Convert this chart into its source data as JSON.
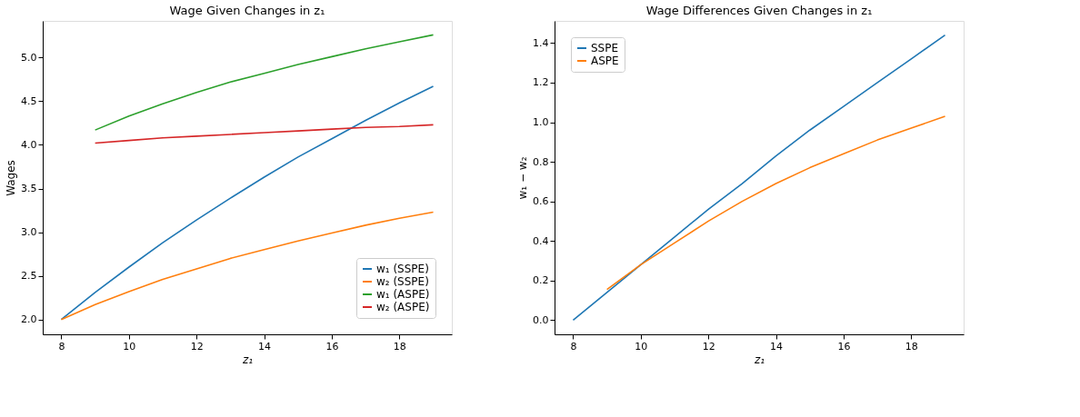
{
  "chart_data": [
    {
      "type": "line",
      "title": "Wage Given Changes in z₁",
      "xlabel": "z₁",
      "ylabel": "Wages",
      "xlim": [
        7.45,
        19.55
      ],
      "xticks": [
        8,
        10,
        12,
        14,
        16,
        18
      ],
      "ylim": [
        1.83,
        5.42
      ],
      "yticks": [
        {
          "value": 2,
          "label": "2.0"
        },
        2.5,
        {
          "value": 3,
          "label": "3.0"
        },
        3.5,
        {
          "value": 4,
          "label": "4.0"
        },
        4.5,
        {
          "value": 5,
          "label": "5.0"
        }
      ],
      "grid": false,
      "legend": "bottom right",
      "marker": "none",
      "line_style": "solid",
      "series": [
        {
          "name": "w₁ (SSPE)",
          "color": "#1f77b4",
          "x": [
            8,
            9,
            10,
            11,
            12,
            13,
            14,
            15,
            16,
            17,
            18,
            19
          ],
          "values": [
            2.0,
            2.31,
            2.6,
            2.88,
            3.14,
            3.39,
            3.63,
            3.86,
            4.07,
            4.28,
            4.48,
            4.67
          ]
        },
        {
          "name": "w₂ (SSPE)",
          "color": "#ff7f0e",
          "x": [
            8,
            9,
            10,
            11,
            12,
            13,
            14,
            15,
            16,
            17,
            18,
            19
          ],
          "values": [
            2.0,
            2.17,
            2.32,
            2.46,
            2.58,
            2.7,
            2.8,
            2.9,
            2.99,
            3.08,
            3.16,
            3.23
          ]
        },
        {
          "name": "w₁ (ASPE)",
          "color": "#2ca02c",
          "x": [
            9,
            10,
            11,
            12,
            13,
            14,
            15,
            16,
            17,
            18,
            19
          ],
          "values": [
            4.17,
            4.33,
            4.47,
            4.6,
            4.72,
            4.82,
            4.92,
            5.01,
            5.1,
            5.18,
            5.26
          ]
        },
        {
          "name": "w₂ (ASPE)",
          "color": "#d62728",
          "x": [
            9,
            10,
            11,
            12,
            13,
            14,
            15,
            16,
            17,
            18,
            19
          ],
          "values": [
            4.02,
            4.05,
            4.08,
            4.1,
            4.12,
            4.14,
            4.16,
            4.18,
            4.2,
            4.21,
            4.23
          ]
        }
      ]
    },
    {
      "type": "line",
      "title": "Wage Differences Given Changes in z₁",
      "xlabel": "z₁",
      "ylabel": "w₁ − w₂",
      "xlim": [
        7.45,
        19.55
      ],
      "xticks": [
        8,
        10,
        12,
        14,
        16,
        18
      ],
      "ylim": [
        -0.072,
        1.512
      ],
      "yticks": [
        {
          "value": 0,
          "label": "0.0"
        },
        0.2,
        0.4,
        0.6,
        0.8,
        {
          "value": 1,
          "label": "1.0"
        },
        1.2,
        1.4
      ],
      "grid": false,
      "legend": "top left",
      "marker": "none",
      "line_style": "solid",
      "series": [
        {
          "name": "SSPE",
          "color": "#1f77b4",
          "x": [
            8,
            9,
            10,
            11,
            12,
            13,
            14,
            15,
            16,
            17,
            18,
            19
          ],
          "values": [
            0.0,
            0.14,
            0.28,
            0.42,
            0.56,
            0.69,
            0.83,
            0.96,
            1.08,
            1.2,
            1.32,
            1.44
          ]
        },
        {
          "name": "ASPE",
          "color": "#ff7f0e",
          "x": [
            9,
            10,
            11,
            12,
            13,
            14,
            15,
            16,
            17,
            18,
            19
          ],
          "values": [
            0.155,
            0.28,
            0.39,
            0.5,
            0.6,
            0.69,
            0.77,
            0.84,
            0.91,
            0.97,
            1.03
          ]
        }
      ]
    }
  ]
}
